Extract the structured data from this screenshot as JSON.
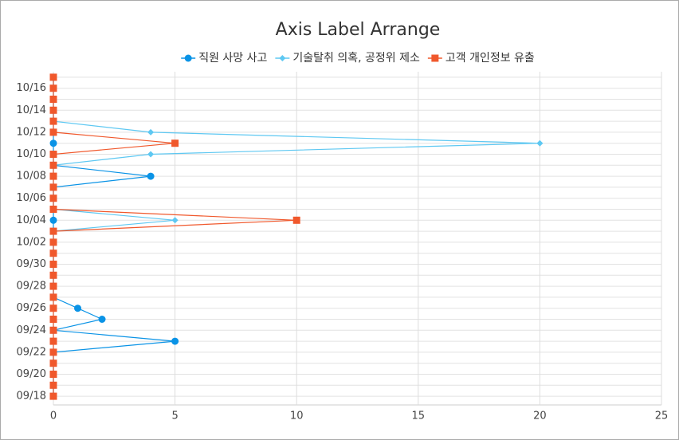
{
  "chart_data": {
    "type": "line",
    "orientation": "horizontal",
    "title": "Axis Label Arrange",
    "categories": [
      "09/18",
      null,
      "09/20",
      null,
      "09/22",
      null,
      "09/24",
      null,
      "09/26",
      null,
      "09/28",
      null,
      "09/30",
      null,
      "10/02",
      null,
      "10/04",
      null,
      "10/06",
      null,
      "10/08",
      null,
      "10/10",
      null,
      "10/12",
      null,
      "10/14",
      null,
      "10/16",
      null
    ],
    "series": [
      {
        "name": "직원 사망 사고",
        "color": "#0a93e6",
        "marker": "circle",
        "values": [
          0,
          0,
          0,
          0,
          0,
          5,
          0,
          2,
          1,
          0,
          0,
          0,
          0,
          0,
          0,
          0,
          0,
          0,
          0,
          0,
          4,
          0,
          0,
          0,
          0,
          0,
          0,
          0,
          0,
          0
        ]
      },
      {
        "name": "기술탈취 의혹, 공정위 제소",
        "color": "#5ec8f2",
        "marker": "diamond",
        "values": [
          0,
          0,
          0,
          0,
          0,
          0,
          0,
          0,
          0,
          0,
          0,
          0,
          0,
          0,
          0,
          0,
          5,
          0,
          0,
          0,
          0,
          0,
          4,
          20,
          4,
          0,
          0,
          0,
          0,
          0
        ]
      },
      {
        "name": "고객 개인정보 유출",
        "color": "#f0582c",
        "marker": "square",
        "values": [
          0,
          0,
          0,
          0,
          0,
          0,
          0,
          0,
          0,
          0,
          0,
          0,
          0,
          0,
          0,
          0,
          10,
          0,
          0,
          0,
          0,
          0,
          0,
          5,
          0,
          0,
          0,
          0,
          0,
          0
        ]
      }
    ],
    "xlim": [
      0,
      25
    ],
    "xticks": [
      0,
      5,
      10,
      15,
      20,
      25
    ],
    "grid": true
  }
}
